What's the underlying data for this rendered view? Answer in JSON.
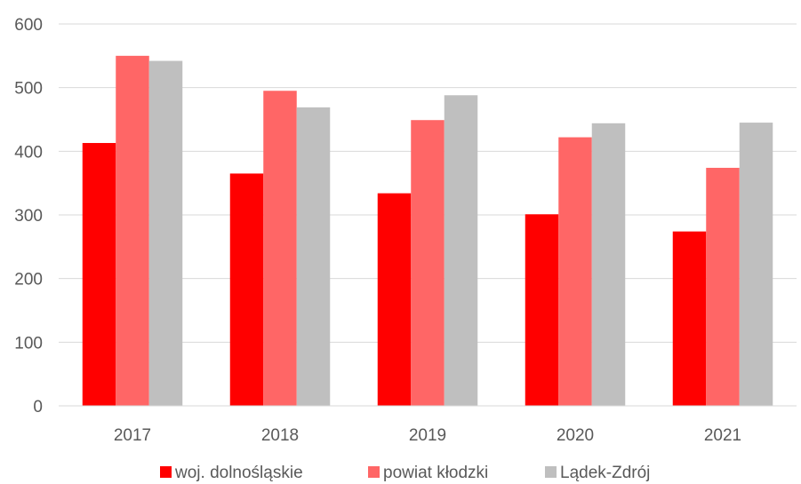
{
  "chart_data": {
    "type": "bar",
    "categories": [
      "2017",
      "2018",
      "2019",
      "2020",
      "2021"
    ],
    "series": [
      {
        "name": "woj. dolnośląskie",
        "color": "#ff0000",
        "values": [
          413,
          365,
          334,
          301,
          274
        ]
      },
      {
        "name": "powiat kłodzki",
        "color": "#ff6666",
        "values": [
          550,
          495,
          449,
          422,
          374
        ]
      },
      {
        "name": "Lądek-Zdrój",
        "color": "#bfbfbf",
        "values": [
          542,
          469,
          488,
          444,
          445
        ]
      }
    ],
    "yticks": [
      "0",
      "100",
      "200",
      "300",
      "400",
      "500",
      "600"
    ],
    "ylim": [
      0,
      600
    ],
    "grid": true,
    "legend_position": "bottom"
  }
}
